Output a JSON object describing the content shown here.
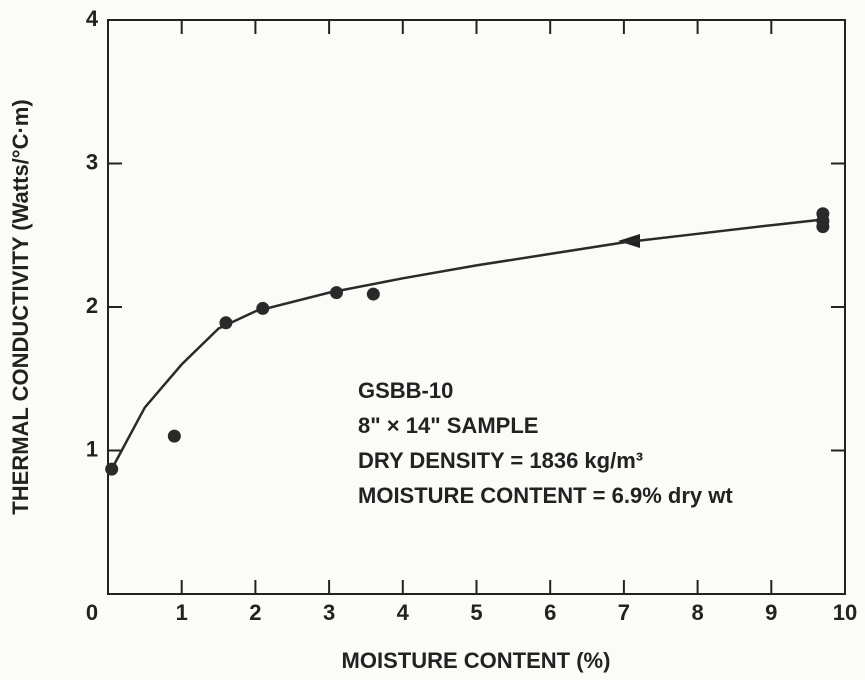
{
  "chart_data": {
    "type": "scatter",
    "xlabel": "MOISTURE CONTENT (%)",
    "ylabel": "THERMAL CONDUCTIVITY (Watts/°C·m)",
    "xlim": [
      0,
      10
    ],
    "ylim": [
      0,
      4
    ],
    "xticks": [
      0,
      1,
      2,
      3,
      4,
      5,
      6,
      7,
      8,
      9,
      10
    ],
    "yticks": [
      0,
      1,
      2,
      3,
      4
    ],
    "color": "#2a2a2a",
    "points": {
      "x": [
        0.05,
        0.9,
        1.6,
        2.1,
        3.1,
        3.6,
        9.7,
        9.7,
        9.7
      ],
      "y": [
        0.87,
        1.1,
        1.89,
        1.99,
        2.1,
        2.09,
        2.65,
        2.6,
        2.56
      ]
    },
    "curve": {
      "x": [
        0.05,
        0.5,
        1,
        1.5,
        2,
        3,
        4,
        5,
        6,
        7,
        8,
        9,
        9.7
      ],
      "y": [
        0.87,
        1.3,
        1.6,
        1.85,
        1.97,
        2.1,
        2.2,
        2.29,
        2.37,
        2.45,
        2.51,
        2.57,
        2.61
      ]
    },
    "annotations": [
      "GSBB-10",
      "8\" × 14\" SAMPLE",
      "DRY DENSITY = 1836 kg/m³",
      "MOISTURE CONTENT = 6.9% dry wt"
    ]
  }
}
